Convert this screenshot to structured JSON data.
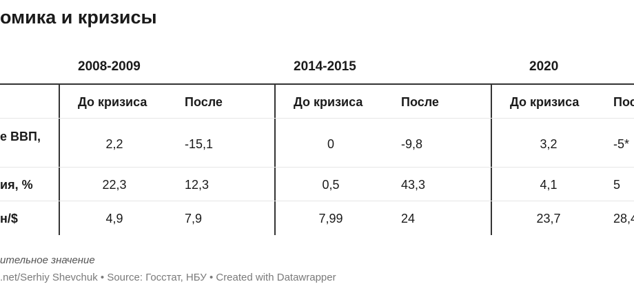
{
  "title": "омика и кризисы",
  "groups": [
    "2008-2009",
    "2014-2015",
    "2020"
  ],
  "subheaders": {
    "before": "До кризиса",
    "after": "После"
  },
  "rows": [
    {
      "label": "е ВВП,",
      "values": [
        "2,2",
        "-15,1",
        "0",
        "-9,8",
        "3,2",
        "-5*"
      ]
    },
    {
      "label": "ия, %",
      "values": [
        "22,3",
        "12,3",
        "0,5",
        "43,3",
        "4,1",
        "5"
      ]
    },
    {
      "label": "н/$",
      "values": [
        "4,9",
        "7,9",
        "7,99",
        "24",
        "23,7",
        "28,4"
      ]
    }
  ],
  "footnote": "ительное значение",
  "source": ".net/Serhiy Shevchuk • Source: Госстат, НБУ • Created with Datawrapper",
  "colors": {
    "text": "#1a1a1a",
    "rule": "#333333",
    "row_divider": "#e6e6e6",
    "meta": "#7a7a7a"
  }
}
